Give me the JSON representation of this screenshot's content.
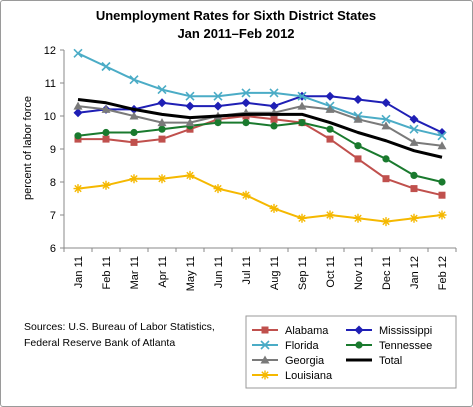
{
  "source_note": {
    "line1": "Sources: U.S. Bureau of Labor Statistics,",
    "line2": "Federal Reserve Bank of Atlanta"
  },
  "chart_data": {
    "type": "line",
    "title": "Unemployment Rates for Sixth District States",
    "subtitle": "Jan 2011–Feb 2012",
    "xlabel": "",
    "ylabel": "percent of labor force",
    "ylim": [
      6,
      12
    ],
    "yticks": [
      6,
      7,
      8,
      9,
      10,
      11,
      12
    ],
    "grid": false,
    "legend_position": "bottom-right",
    "categories": [
      "Jan 11",
      "Feb 11",
      "Mar 11",
      "Apr 11",
      "May 11",
      "Jun 11",
      "Jul 11",
      "Aug 11",
      "Sep 11",
      "Oct 11",
      "Nov 11",
      "Dec 11",
      "Jan 12",
      "Feb 12"
    ],
    "series": [
      {
        "name": "Alabama",
        "color": "#c0504d",
        "marker": "square",
        "values": [
          9.3,
          9.3,
          9.2,
          9.3,
          9.6,
          9.9,
          10.0,
          9.9,
          9.8,
          9.3,
          8.7,
          8.1,
          7.8,
          7.6
        ]
      },
      {
        "name": "Mississippi",
        "color": "#1f1fb5",
        "marker": "diamond",
        "values": [
          10.1,
          10.2,
          10.2,
          10.4,
          10.3,
          10.3,
          10.4,
          10.3,
          10.6,
          10.6,
          10.5,
          10.4,
          9.9,
          9.5
        ]
      },
      {
        "name": "Florida",
        "color": "#4bacc6",
        "marker": "x",
        "values": [
          11.9,
          11.5,
          11.1,
          10.8,
          10.6,
          10.6,
          10.7,
          10.7,
          10.6,
          10.3,
          10.0,
          9.9,
          9.6,
          9.4
        ]
      },
      {
        "name": "Tennessee",
        "color": "#1a7a2e",
        "marker": "circle",
        "values": [
          9.4,
          9.5,
          9.5,
          9.6,
          9.7,
          9.8,
          9.8,
          9.7,
          9.8,
          9.6,
          9.1,
          8.7,
          8.2,
          8.0
        ]
      },
      {
        "name": "Georgia",
        "color": "#7a7a7a",
        "marker": "triangle",
        "values": [
          10.3,
          10.2,
          10.0,
          9.8,
          9.8,
          10.0,
          10.1,
          10.1,
          10.3,
          10.2,
          9.9,
          9.7,
          9.2,
          9.1
        ]
      },
      {
        "name": "Total",
        "color": "#000000",
        "marker": "none",
        "values": [
          10.5,
          10.4,
          10.2,
          10.05,
          9.95,
          10.0,
          10.05,
          10.05,
          10.05,
          9.8,
          9.5,
          9.25,
          8.95,
          8.75
        ]
      },
      {
        "name": "Louisiana",
        "color": "#f5b800",
        "marker": "star",
        "values": [
          7.8,
          7.9,
          8.1,
          8.1,
          8.2,
          7.8,
          7.6,
          7.2,
          6.9,
          7.0,
          6.9,
          6.8,
          6.9,
          7.0
        ]
      }
    ]
  }
}
